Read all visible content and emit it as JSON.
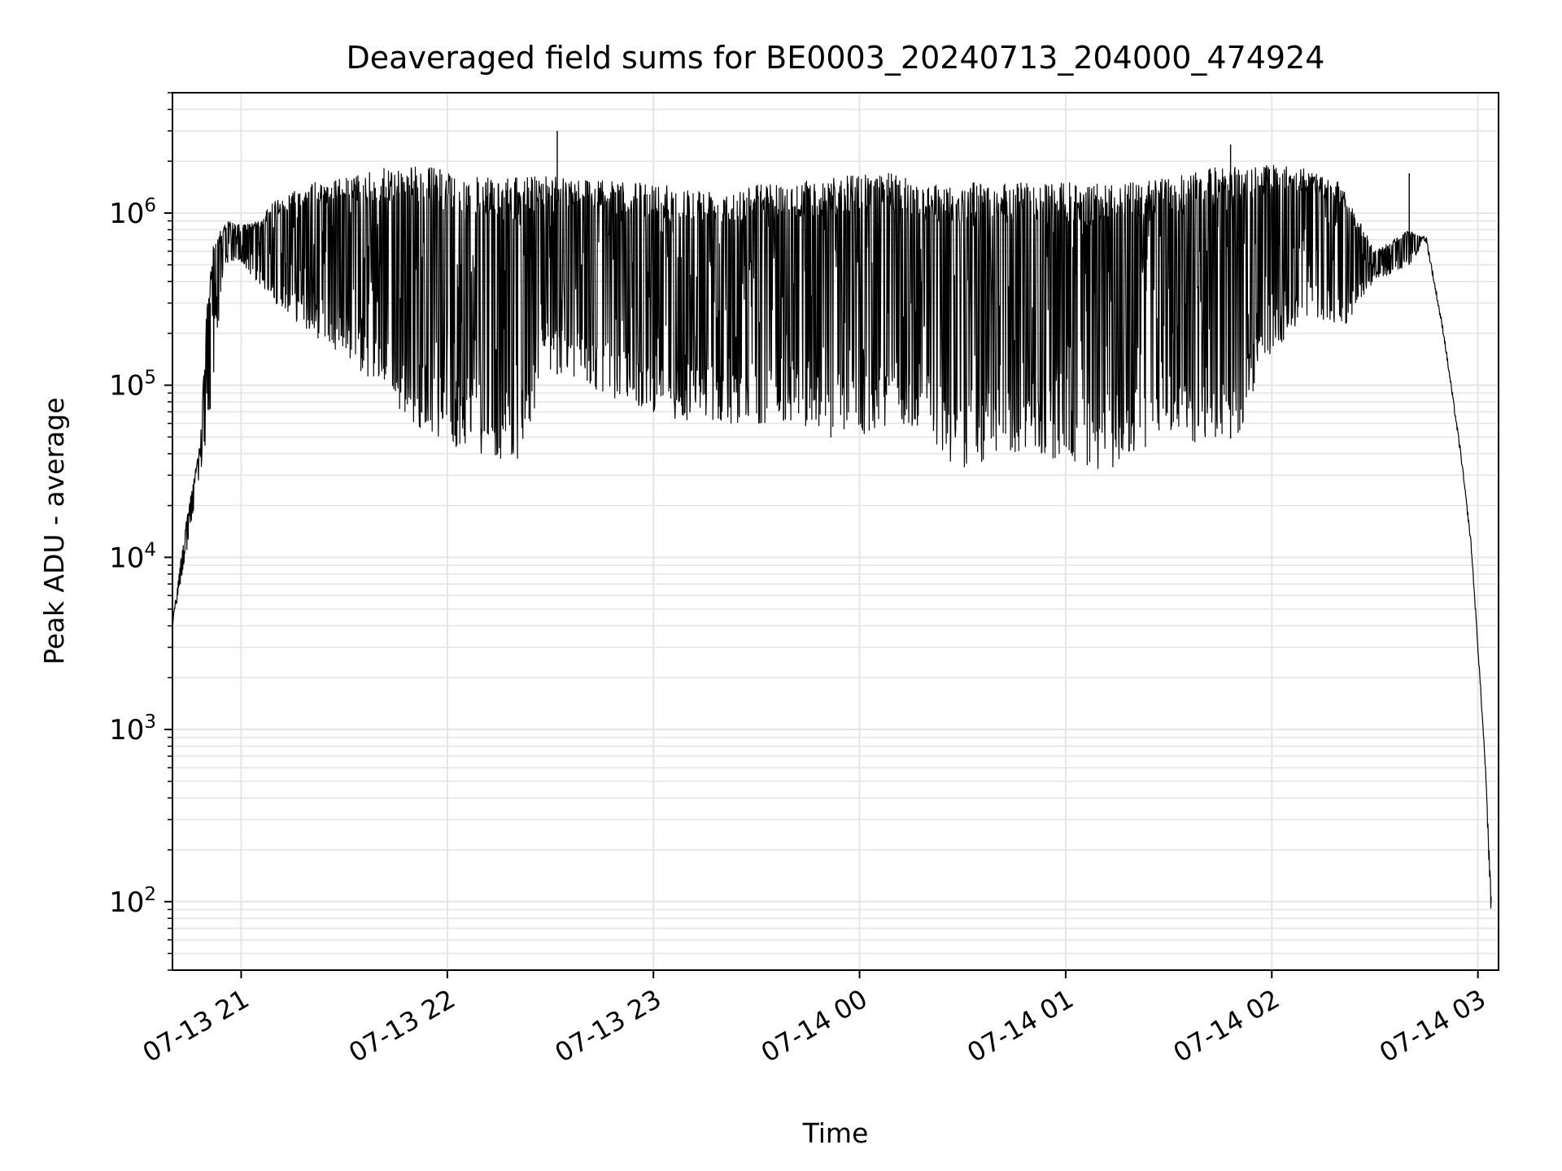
{
  "chart_data": {
    "type": "line",
    "title": "Deaveraged field sums for BE0003_20240713_204000_474924",
    "xlabel": "Time",
    "ylabel": "Peak ADU - average",
    "y_scale": "log",
    "ylim": [
      40,
      5000000
    ],
    "xlim": [
      "2024-07-13 20:40",
      "2024-07-14 03:06"
    ],
    "grid": true,
    "line_color": "#000000",
    "grid_color": "#e5e5e5",
    "x_ticks": [
      {
        "label": "07-13 21",
        "value": "2024-07-13 21:00"
      },
      {
        "label": "07-13 22",
        "value": "2024-07-13 22:00"
      },
      {
        "label": "07-13 23",
        "value": "2024-07-13 23:00"
      },
      {
        "label": "07-14 00",
        "value": "2024-07-14 00:00"
      },
      {
        "label": "07-14 01",
        "value": "2024-07-14 01:00"
      },
      {
        "label": "07-14 02",
        "value": "2024-07-14 02:00"
      },
      {
        "label": "07-14 03",
        "value": "2024-07-14 03:00"
      }
    ],
    "y_ticks": [
      {
        "base": "10",
        "exp": "2",
        "value": 100
      },
      {
        "base": "10",
        "exp": "3",
        "value": 1000
      },
      {
        "base": "10",
        "exp": "4",
        "value": 10000
      },
      {
        "base": "10",
        "exp": "5",
        "value": 100000
      },
      {
        "base": "10",
        "exp": "6",
        "value": 1000000
      }
    ],
    "series": [
      {
        "envelope_upper": [
          [
            "2024-07-13 20:40",
            4000
          ],
          [
            "2024-07-13 20:43",
            12000
          ],
          [
            "2024-07-13 20:46",
            28000
          ],
          [
            "2024-07-13 20:48",
            45000
          ],
          [
            "2024-07-13 20:50",
            280000
          ],
          [
            "2024-07-13 20:52",
            700000
          ],
          [
            "2024-07-13 20:56",
            900000
          ],
          [
            "2024-07-13 21:00",
            850000
          ],
          [
            "2024-07-13 21:05",
            900000
          ],
          [
            "2024-07-13 21:10",
            1200000
          ],
          [
            "2024-07-13 21:20",
            1500000
          ],
          [
            "2024-07-13 21:30",
            1600000
          ],
          [
            "2024-07-13 21:40",
            1800000
          ],
          [
            "2024-07-13 21:50",
            1900000
          ],
          [
            "2024-07-13 22:00",
            1800000
          ],
          [
            "2024-07-13 22:10",
            1600000
          ],
          [
            "2024-07-13 22:20",
            1600000
          ],
          [
            "2024-07-13 22:30",
            1700000
          ],
          [
            "2024-07-13 22:40",
            1600000
          ],
          [
            "2024-07-13 22:50",
            1500000
          ],
          [
            "2024-07-13 23:00",
            1500000
          ],
          [
            "2024-07-13 23:10",
            1400000
          ],
          [
            "2024-07-13 23:20",
            1400000
          ],
          [
            "2024-07-13 23:30",
            1500000
          ],
          [
            "2024-07-13 23:40",
            1500000
          ],
          [
            "2024-07-13 23:50",
            1600000
          ],
          [
            "2024-07-14 00:00",
            1700000
          ],
          [
            "2024-07-14 00:10",
            1700000
          ],
          [
            "2024-07-14 00:20",
            1500000
          ],
          [
            "2024-07-14 00:30",
            1500000
          ],
          [
            "2024-07-14 00:40",
            1500000
          ],
          [
            "2024-07-14 00:50",
            1500000
          ],
          [
            "2024-07-14 01:00",
            1500000
          ],
          [
            "2024-07-14 01:10",
            1500000
          ],
          [
            "2024-07-14 01:20",
            1500000
          ],
          [
            "2024-07-14 01:30",
            1600000
          ],
          [
            "2024-07-14 01:40",
            1800000
          ],
          [
            "2024-07-14 01:50",
            1900000
          ],
          [
            "2024-07-14 02:00",
            1900000
          ],
          [
            "2024-07-14 02:10",
            1800000
          ],
          [
            "2024-07-14 02:20",
            1500000
          ],
          [
            "2024-07-14 02:30",
            600000
          ],
          [
            "2024-07-14 02:40",
            800000
          ],
          [
            "2024-07-14 02:45",
            700000
          ],
          [
            "2024-07-14 02:50",
            200000
          ],
          [
            "2024-07-14 02:55",
            40000
          ],
          [
            "2024-07-14 02:58",
            12000
          ],
          [
            "2024-07-14 03:00",
            3000
          ],
          [
            "2024-07-14 03:02",
            700
          ],
          [
            "2024-07-14 03:04",
            100
          ]
        ],
        "envelope_lower": [
          [
            "2024-07-13 20:40",
            4000
          ],
          [
            "2024-07-13 20:50",
            45000
          ],
          [
            "2024-07-13 20:55",
            500000
          ],
          [
            "2024-07-13 21:00",
            500000
          ],
          [
            "2024-07-13 21:10",
            300000
          ],
          [
            "2024-07-13 21:20",
            200000
          ],
          [
            "2024-07-13 21:30",
            150000
          ],
          [
            "2024-07-13 21:40",
            90000
          ],
          [
            "2024-07-13 21:50",
            60000
          ],
          [
            "2024-07-13 22:00",
            45000
          ],
          [
            "2024-07-13 22:10",
            40000
          ],
          [
            "2024-07-13 22:20",
            35000
          ],
          [
            "2024-07-13 22:30",
            120000
          ],
          [
            "2024-07-13 22:40",
            100000
          ],
          [
            "2024-07-13 22:50",
            80000
          ],
          [
            "2024-07-13 23:00",
            70000
          ],
          [
            "2024-07-13 23:10",
            60000
          ],
          [
            "2024-07-13 23:20",
            60000
          ],
          [
            "2024-07-13 23:30",
            60000
          ],
          [
            "2024-07-13 23:40",
            60000
          ],
          [
            "2024-07-13 23:50",
            50000
          ],
          [
            "2024-07-14 00:00",
            45000
          ],
          [
            "2024-07-14 00:10",
            60000
          ],
          [
            "2024-07-14 00:20",
            50000
          ],
          [
            "2024-07-14 00:30",
            30000
          ],
          [
            "2024-07-14 00:40",
            40000
          ],
          [
            "2024-07-14 00:50",
            40000
          ],
          [
            "2024-07-14 01:00",
            35000
          ],
          [
            "2024-07-14 01:10",
            30000
          ],
          [
            "2024-07-14 01:20",
            40000
          ],
          [
            "2024-07-14 01:30",
            50000
          ],
          [
            "2024-07-14 01:40",
            45000
          ],
          [
            "2024-07-14 01:50",
            50000
          ],
          [
            "2024-07-14 02:00",
            150000
          ],
          [
            "2024-07-14 02:10",
            250000
          ],
          [
            "2024-07-14 02:20",
            200000
          ],
          [
            "2024-07-14 02:30",
            400000
          ],
          [
            "2024-07-14 02:40",
            500000
          ],
          [
            "2024-07-14 02:45",
            700000
          ],
          [
            "2024-07-14 02:50",
            200000
          ],
          [
            "2024-07-14 02:55",
            40000
          ],
          [
            "2024-07-14 02:58",
            12000
          ],
          [
            "2024-07-14 03:00",
            3000
          ],
          [
            "2024-07-14 03:02",
            700
          ],
          [
            "2024-07-14 03:04",
            60
          ]
        ],
        "spikes": [
          [
            "2024-07-13 22:32",
            3000000
          ],
          [
            "2024-07-14 01:48",
            2500000
          ],
          [
            "2024-07-14 02:40",
            1700000
          ],
          [
            "2024-07-13 20:51",
            300000
          ]
        ]
      }
    ]
  }
}
